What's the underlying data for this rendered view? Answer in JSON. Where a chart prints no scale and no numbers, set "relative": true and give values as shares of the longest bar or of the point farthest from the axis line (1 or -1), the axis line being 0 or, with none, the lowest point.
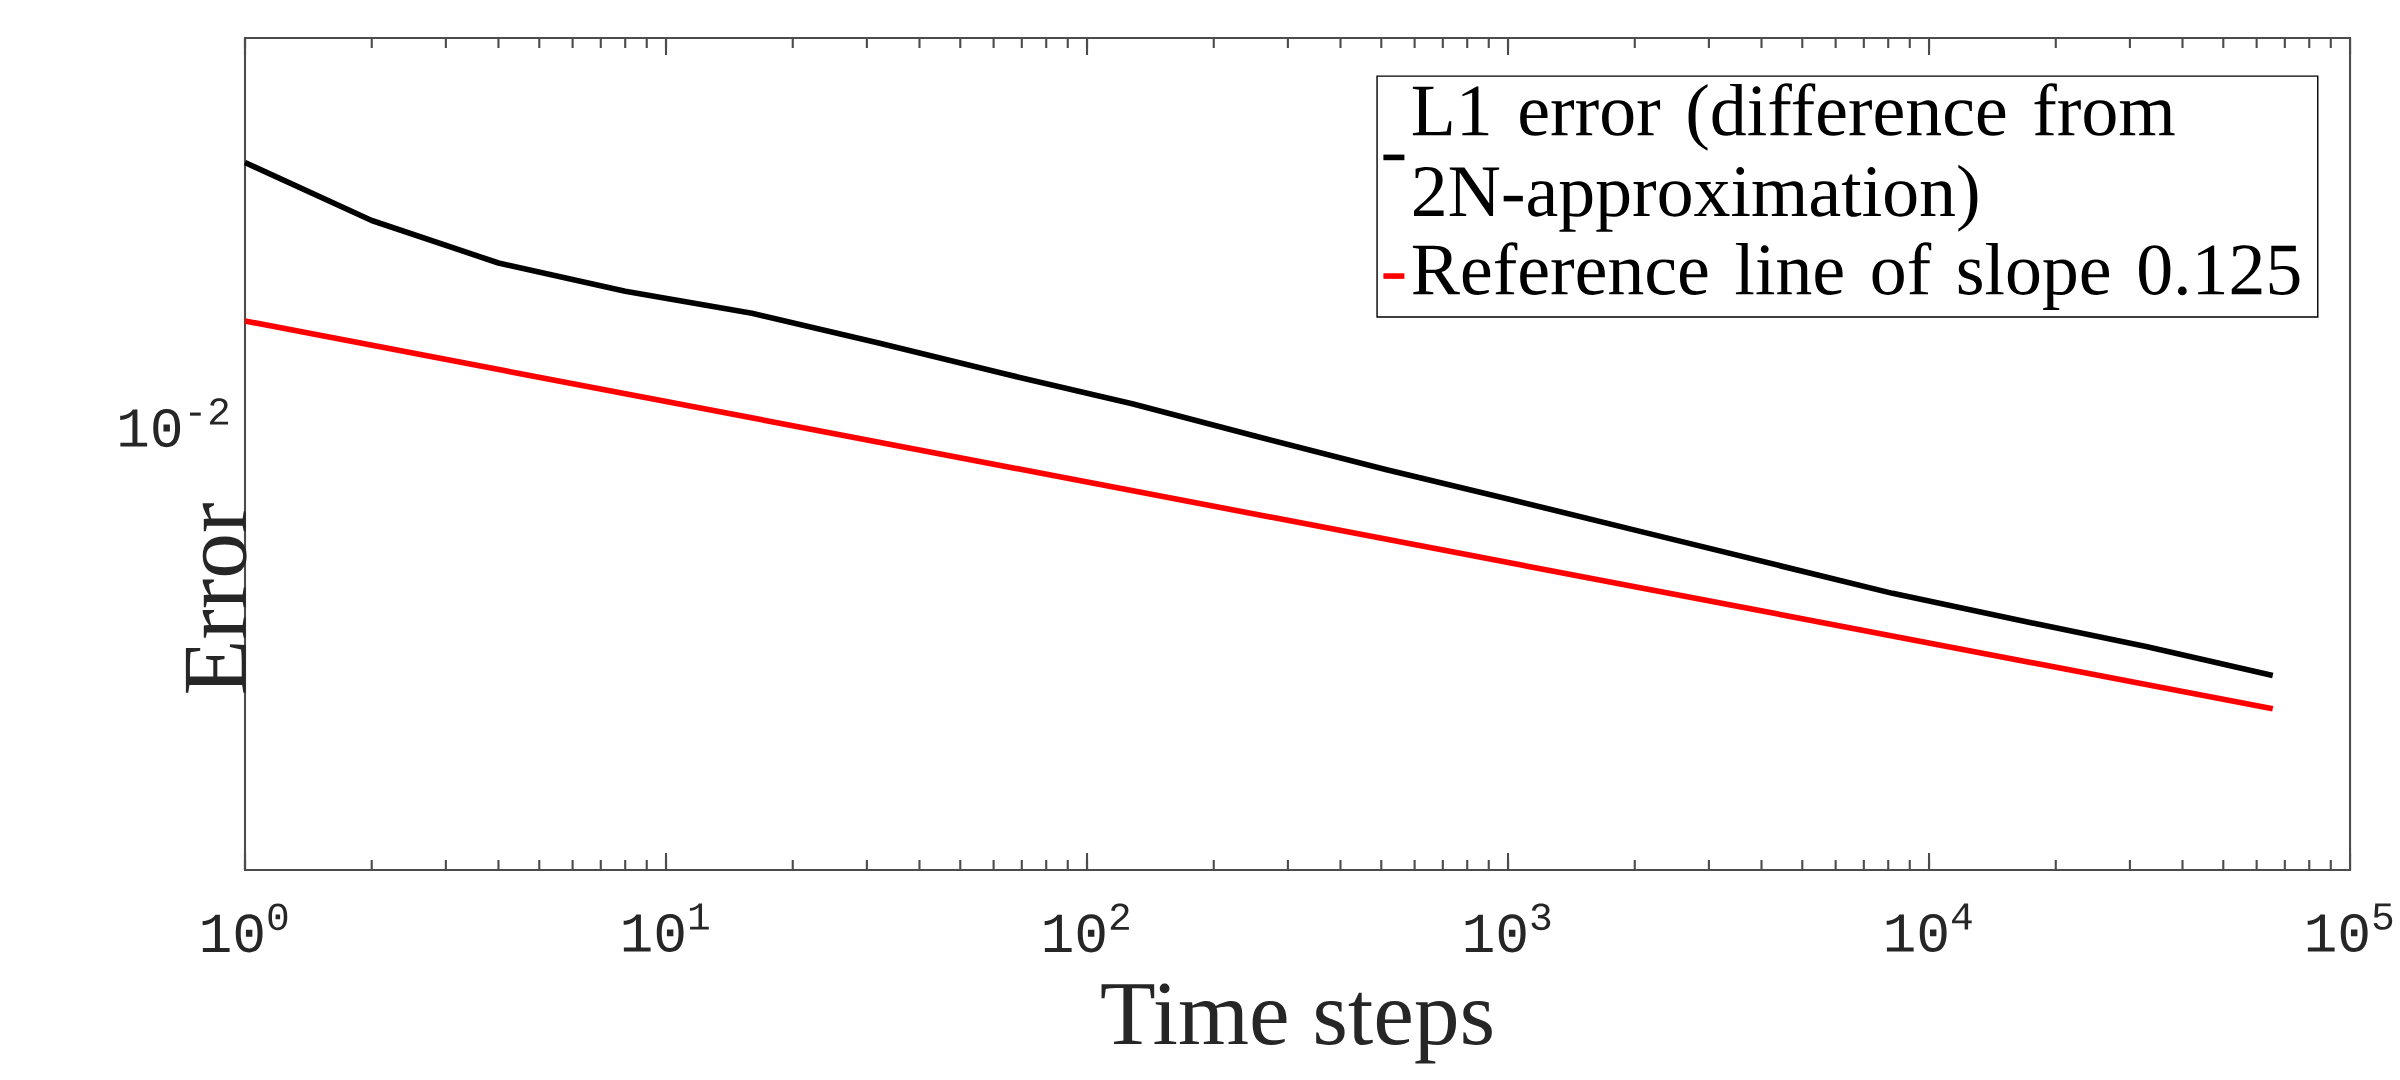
{
  "chart_data": {
    "type": "line",
    "xlabel": "Time steps",
    "ylabel": "Error",
    "log": "x",
    "relative": true,
    "xlim": [
      1,
      100000
    ],
    "xticks": [
      {
        "value": 1,
        "label": "10$^{0}$"
      },
      {
        "value": 10,
        "label": "10$^{1}$"
      },
      {
        "value": 100,
        "label": "10$^{2}$"
      },
      {
        "value": 1000,
        "label": "10$^{3}$"
      },
      {
        "value": 10000,
        "label": "10$^{4}$"
      },
      {
        "value": 100000,
        "label": "10$^{5}$"
      }
    ],
    "annotations": [
      "10$^{-2}$"
    ],
    "legend": "top right",
    "series": [
      {
        "name": "L1 error (difference from 2N-approximation)",
        "color": "#000000",
        "x": [
          1,
          2,
          4,
          8,
          16,
          32,
          64,
          128,
          256,
          512,
          1024,
          2048,
          4096,
          8192,
          16384,
          32768,
          65536
        ],
        "values": [
          1.0,
          0.918,
          0.858,
          0.818,
          0.787,
          0.745,
          0.701,
          0.659,
          0.612,
          0.566,
          0.523,
          0.479,
          0.435,
          0.391,
          0.353,
          0.316,
          0.275
        ]
      },
      {
        "name": "Reference line of slope 0.125",
        "color": "#ff0000",
        "x": [
          1,
          65536
        ],
        "values": [
          0.776,
          0.228
        ]
      }
    ]
  }
}
